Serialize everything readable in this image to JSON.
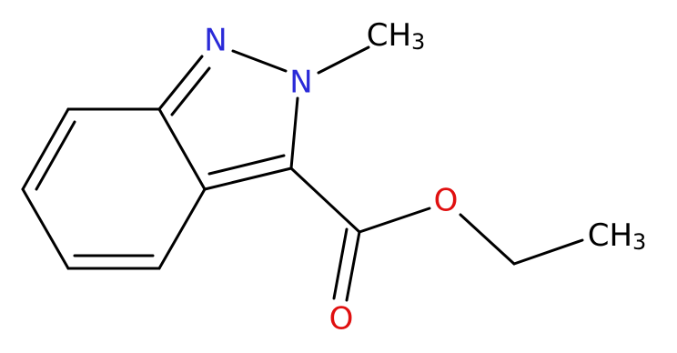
{
  "atoms": [
    {
      "symbol": "N"
    },
    {
      "symbol": "N"
    },
    {
      "symbol": "CH",
      "subscript": "3"
    },
    {
      "symbol": "O"
    },
    {
      "symbol": "O"
    },
    {
      "symbol": "CH",
      "subscript": "3"
    }
  ]
}
